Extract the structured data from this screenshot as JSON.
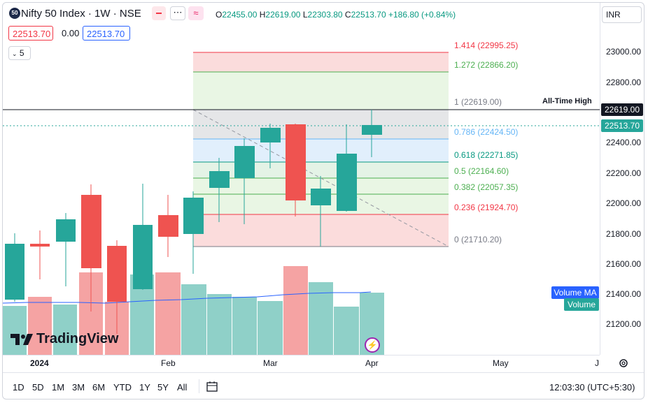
{
  "header": {
    "symbol_badge": "50",
    "title": "Nifty 50 Index · 1W · NSE",
    "ohlc": {
      "o_key": "O",
      "o": "22455.00",
      "h_key": "H",
      "h": "22619.00",
      "l_key": "L",
      "l": "22303.80",
      "c_key": "C",
      "c": "22513.70",
      "change": "+186.80 (+0.84%)"
    },
    "currency": "INR"
  },
  "order_panel": {
    "sell": "22513.70",
    "spread": "0.00",
    "buy": "22513.70"
  },
  "indicators_toggle": {
    "count": "5"
  },
  "price_axis": {
    "ticks": [
      "23000.00",
      "22800.00",
      "22600.00",
      "22400.00",
      "22200.00",
      "22000.00",
      "21800.00",
      "21600.00",
      "21400.00",
      "21200.00"
    ],
    "all_time_high_label": "All-Time High",
    "all_time_high_value": "22619.00",
    "last_price": "22513.70",
    "volume_ma_label": "Volume MA",
    "volume_label": "Volume"
  },
  "time_axis": {
    "ticks": [
      "2024",
      "Feb",
      "Mar",
      "Apr",
      "May",
      "J"
    ]
  },
  "fibonacci": [
    {
      "level": "1.414 (22995.25)",
      "color": "#f23645"
    },
    {
      "level": "1.272 (22866.20)",
      "color": "#4caf50"
    },
    {
      "level": "1 (22619.00)",
      "color": "#787b86"
    },
    {
      "level": "0.786 (22424.50)",
      "color": "#64b5f6"
    },
    {
      "level": "0.618 (22271.85)",
      "color": "#089981"
    },
    {
      "level": "0.5 (22164.60)",
      "color": "#4caf50"
    },
    {
      "level": "0.382 (22057.35)",
      "color": "#4caf50"
    },
    {
      "level": "0.236 (21924.70)",
      "color": "#f23645"
    },
    {
      "level": "0 (21710.20)",
      "color": "#787b86"
    }
  ],
  "watermark": "TradingView",
  "timeframes": [
    "1D",
    "5D",
    "1M",
    "3M",
    "6M",
    "YTD",
    "1Y",
    "5Y",
    "All"
  ],
  "clock": "12:03:30 (UTC+5:30)",
  "colors": {
    "up": "#26a69a",
    "down": "#ef5350",
    "volume_up": "#8fd0c8",
    "volume_down": "#f5a3a3",
    "ma": "#2962ff"
  }
}
